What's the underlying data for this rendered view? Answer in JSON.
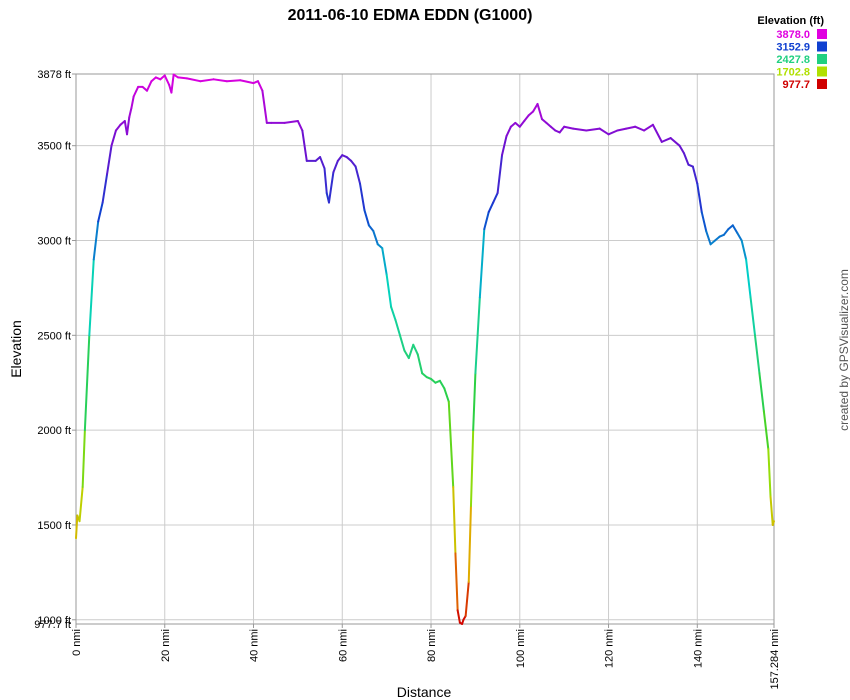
{
  "chart_data": {
    "type": "line",
    "title": "2011-06-10 EDMA EDDN (G1000)",
    "xlabel": "Distance",
    "ylabel": "Elevation",
    "x_unit": "nmi",
    "y_unit": "ft",
    "xlim": [
      0,
      157.284
    ],
    "ylim": [
      977.7,
      3878
    ],
    "x_ticks": [
      0,
      20,
      40,
      60,
      80,
      100,
      120,
      140
    ],
    "x_tick_labels": [
      "0 nmi",
      "20 nmi",
      "40 nmi",
      "60 nmi",
      "80 nmi",
      "100 nmi",
      "120 nmi",
      "140 nmi",
      "157.284 nmi"
    ],
    "y_ticks": [
      1000,
      1500,
      2000,
      2500,
      3000,
      3500,
      3878
    ],
    "y_tick_labels": [
      "1000 ft",
      "1500 ft",
      "2000 ft",
      "2500 ft",
      "3000 ft",
      "3500 ft",
      "3878 ft",
      "977.7 ft"
    ],
    "grid": true,
    "legend": {
      "title": "Elevation (ft)",
      "position": "top-right",
      "entries": [
        {
          "label": "3878.0",
          "color": "#e000e0"
        },
        {
          "label": "3152.9",
          "color": "#1040d0"
        },
        {
          "label": "2427.8",
          "color": "#20d080"
        },
        {
          "label": "1702.8",
          "color": "#b0e000"
        },
        {
          "label": "977.7",
          "color": "#d00000"
        }
      ]
    },
    "credit": "created by GPSVisualizer.com",
    "series": [
      {
        "x": [
          0,
          0.3,
          0.8,
          1.5,
          2,
          3,
          4,
          5,
          6,
          7,
          8,
          9,
          10,
          11,
          11.5,
          12,
          12.5,
          13,
          14,
          15,
          16,
          17,
          18,
          19,
          20,
          21,
          21.5,
          22,
          23,
          25,
          28,
          31,
          34,
          37,
          40,
          41,
          42,
          43,
          44,
          47,
          50,
          51,
          52,
          54,
          55,
          56,
          56.5,
          57,
          58,
          59,
          60,
          61,
          62,
          63,
          64,
          65,
          66,
          67,
          68,
          69,
          70,
          71,
          72,
          73,
          74,
          75,
          76,
          77,
          78,
          79,
          80,
          81,
          82,
          83,
          84,
          85,
          85.5,
          86,
          86.5,
          87,
          87.3,
          87.8,
          88.5,
          89,
          89.5,
          90,
          91,
          92,
          93,
          94,
          95,
          96,
          97,
          98,
          99,
          100,
          101,
          102,
          103,
          104,
          105,
          106,
          107,
          108,
          109,
          110,
          112,
          115,
          118,
          120,
          122,
          124,
          126,
          128,
          130,
          132,
          134,
          136,
          137,
          138,
          139,
          140,
          141,
          142,
          143,
          144,
          145,
          146,
          147,
          148,
          149,
          150,
          151,
          152,
          153,
          154,
          155,
          156,
          156.5,
          157,
          157.284
        ],
        "y": [
          1430,
          1550,
          1520,
          1700,
          2000,
          2500,
          2900,
          3100,
          3200,
          3350,
          3500,
          3580,
          3610,
          3630,
          3560,
          3650,
          3700,
          3760,
          3810,
          3810,
          3790,
          3840,
          3860,
          3850,
          3870,
          3820,
          3780,
          3875,
          3860,
          3855,
          3840,
          3850,
          3840,
          3845,
          3830,
          3840,
          3790,
          3620,
          3620,
          3620,
          3630,
          3580,
          3420,
          3420,
          3440,
          3380,
          3250,
          3200,
          3360,
          3420,
          3450,
          3440,
          3420,
          3390,
          3300,
          3160,
          3080,
          3050,
          2980,
          2960,
          2820,
          2650,
          2580,
          2500,
          2420,
          2380,
          2450,
          2400,
          2300,
          2280,
          2270,
          2250,
          2260,
          2220,
          2150,
          1700,
          1350,
          1050,
          985,
          977.7,
          1000,
          1020,
          1200,
          1600,
          2000,
          2300,
          2700,
          3060,
          3150,
          3200,
          3250,
          3450,
          3550,
          3600,
          3620,
          3600,
          3630,
          3660,
          3680,
          3720,
          3640,
          3620,
          3600,
          3580,
          3570,
          3600,
          3590,
          3580,
          3590,
          3560,
          3580,
          3590,
          3600,
          3580,
          3610,
          3520,
          3540,
          3500,
          3460,
          3400,
          3390,
          3300,
          3150,
          3050,
          2980,
          3000,
          3020,
          3030,
          3060,
          3080,
          3040,
          3000,
          2900,
          2700,
          2500,
          2300,
          2100,
          1900,
          1650,
          1500,
          1520
        ]
      }
    ]
  }
}
